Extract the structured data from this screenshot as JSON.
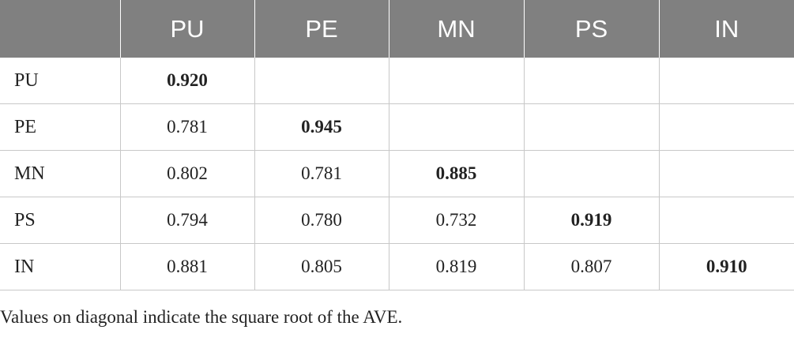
{
  "table": {
    "header": [
      "",
      "PU",
      "PE",
      "MN",
      "PS",
      "IN"
    ],
    "rows": [
      {
        "label": "PU",
        "cells": [
          "0.920",
          "",
          "",
          "",
          ""
        ]
      },
      {
        "label": "PE",
        "cells": [
          "0.781",
          "0.945",
          "",
          "",
          ""
        ]
      },
      {
        "label": "MN",
        "cells": [
          "0.802",
          "0.781",
          "0.885",
          "",
          ""
        ]
      },
      {
        "label": "PS",
        "cells": [
          "0.794",
          "0.780",
          "0.732",
          "0.919",
          ""
        ]
      },
      {
        "label": "IN",
        "cells": [
          "0.881",
          "0.805",
          "0.819",
          "0.807",
          "0.910"
        ]
      }
    ]
  },
  "footnote": "Values on diagonal indicate the square root of the AVE.",
  "colors": {
    "header_background": "#808080",
    "header_text": "#ffffff",
    "grid_lines": "#c8c8c8"
  }
}
